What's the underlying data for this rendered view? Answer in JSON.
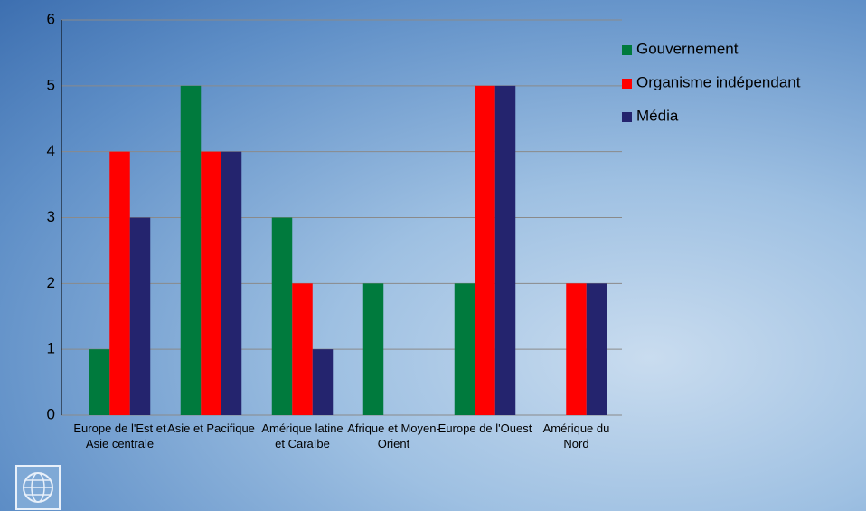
{
  "chart_data": {
    "type": "bar",
    "categories": [
      "Europe de l'Est et Asie centrale",
      "Asie et Pacifique",
      "Amérique latine et Caraïbe",
      "Afrique et Moyen-Orient",
      "Europe de l'Ouest",
      "Amérique du Nord"
    ],
    "series": [
      {
        "name": "Gouvernement",
        "color": "#007a3d",
        "values": [
          1,
          5,
          3,
          2,
          2,
          0
        ]
      },
      {
        "name": "Organisme indépendant",
        "color": "#ff0000",
        "values": [
          4,
          4,
          2,
          0,
          5,
          2
        ]
      },
      {
        "name": "Média",
        "color": "#24246e",
        "values": [
          3,
          4,
          1,
          0,
          5,
          2
        ]
      }
    ],
    "ylim": [
      0,
      6
    ],
    "yticks": [
      0,
      1,
      2,
      3,
      4,
      5,
      6
    ],
    "grid": true,
    "legend": "right"
  }
}
